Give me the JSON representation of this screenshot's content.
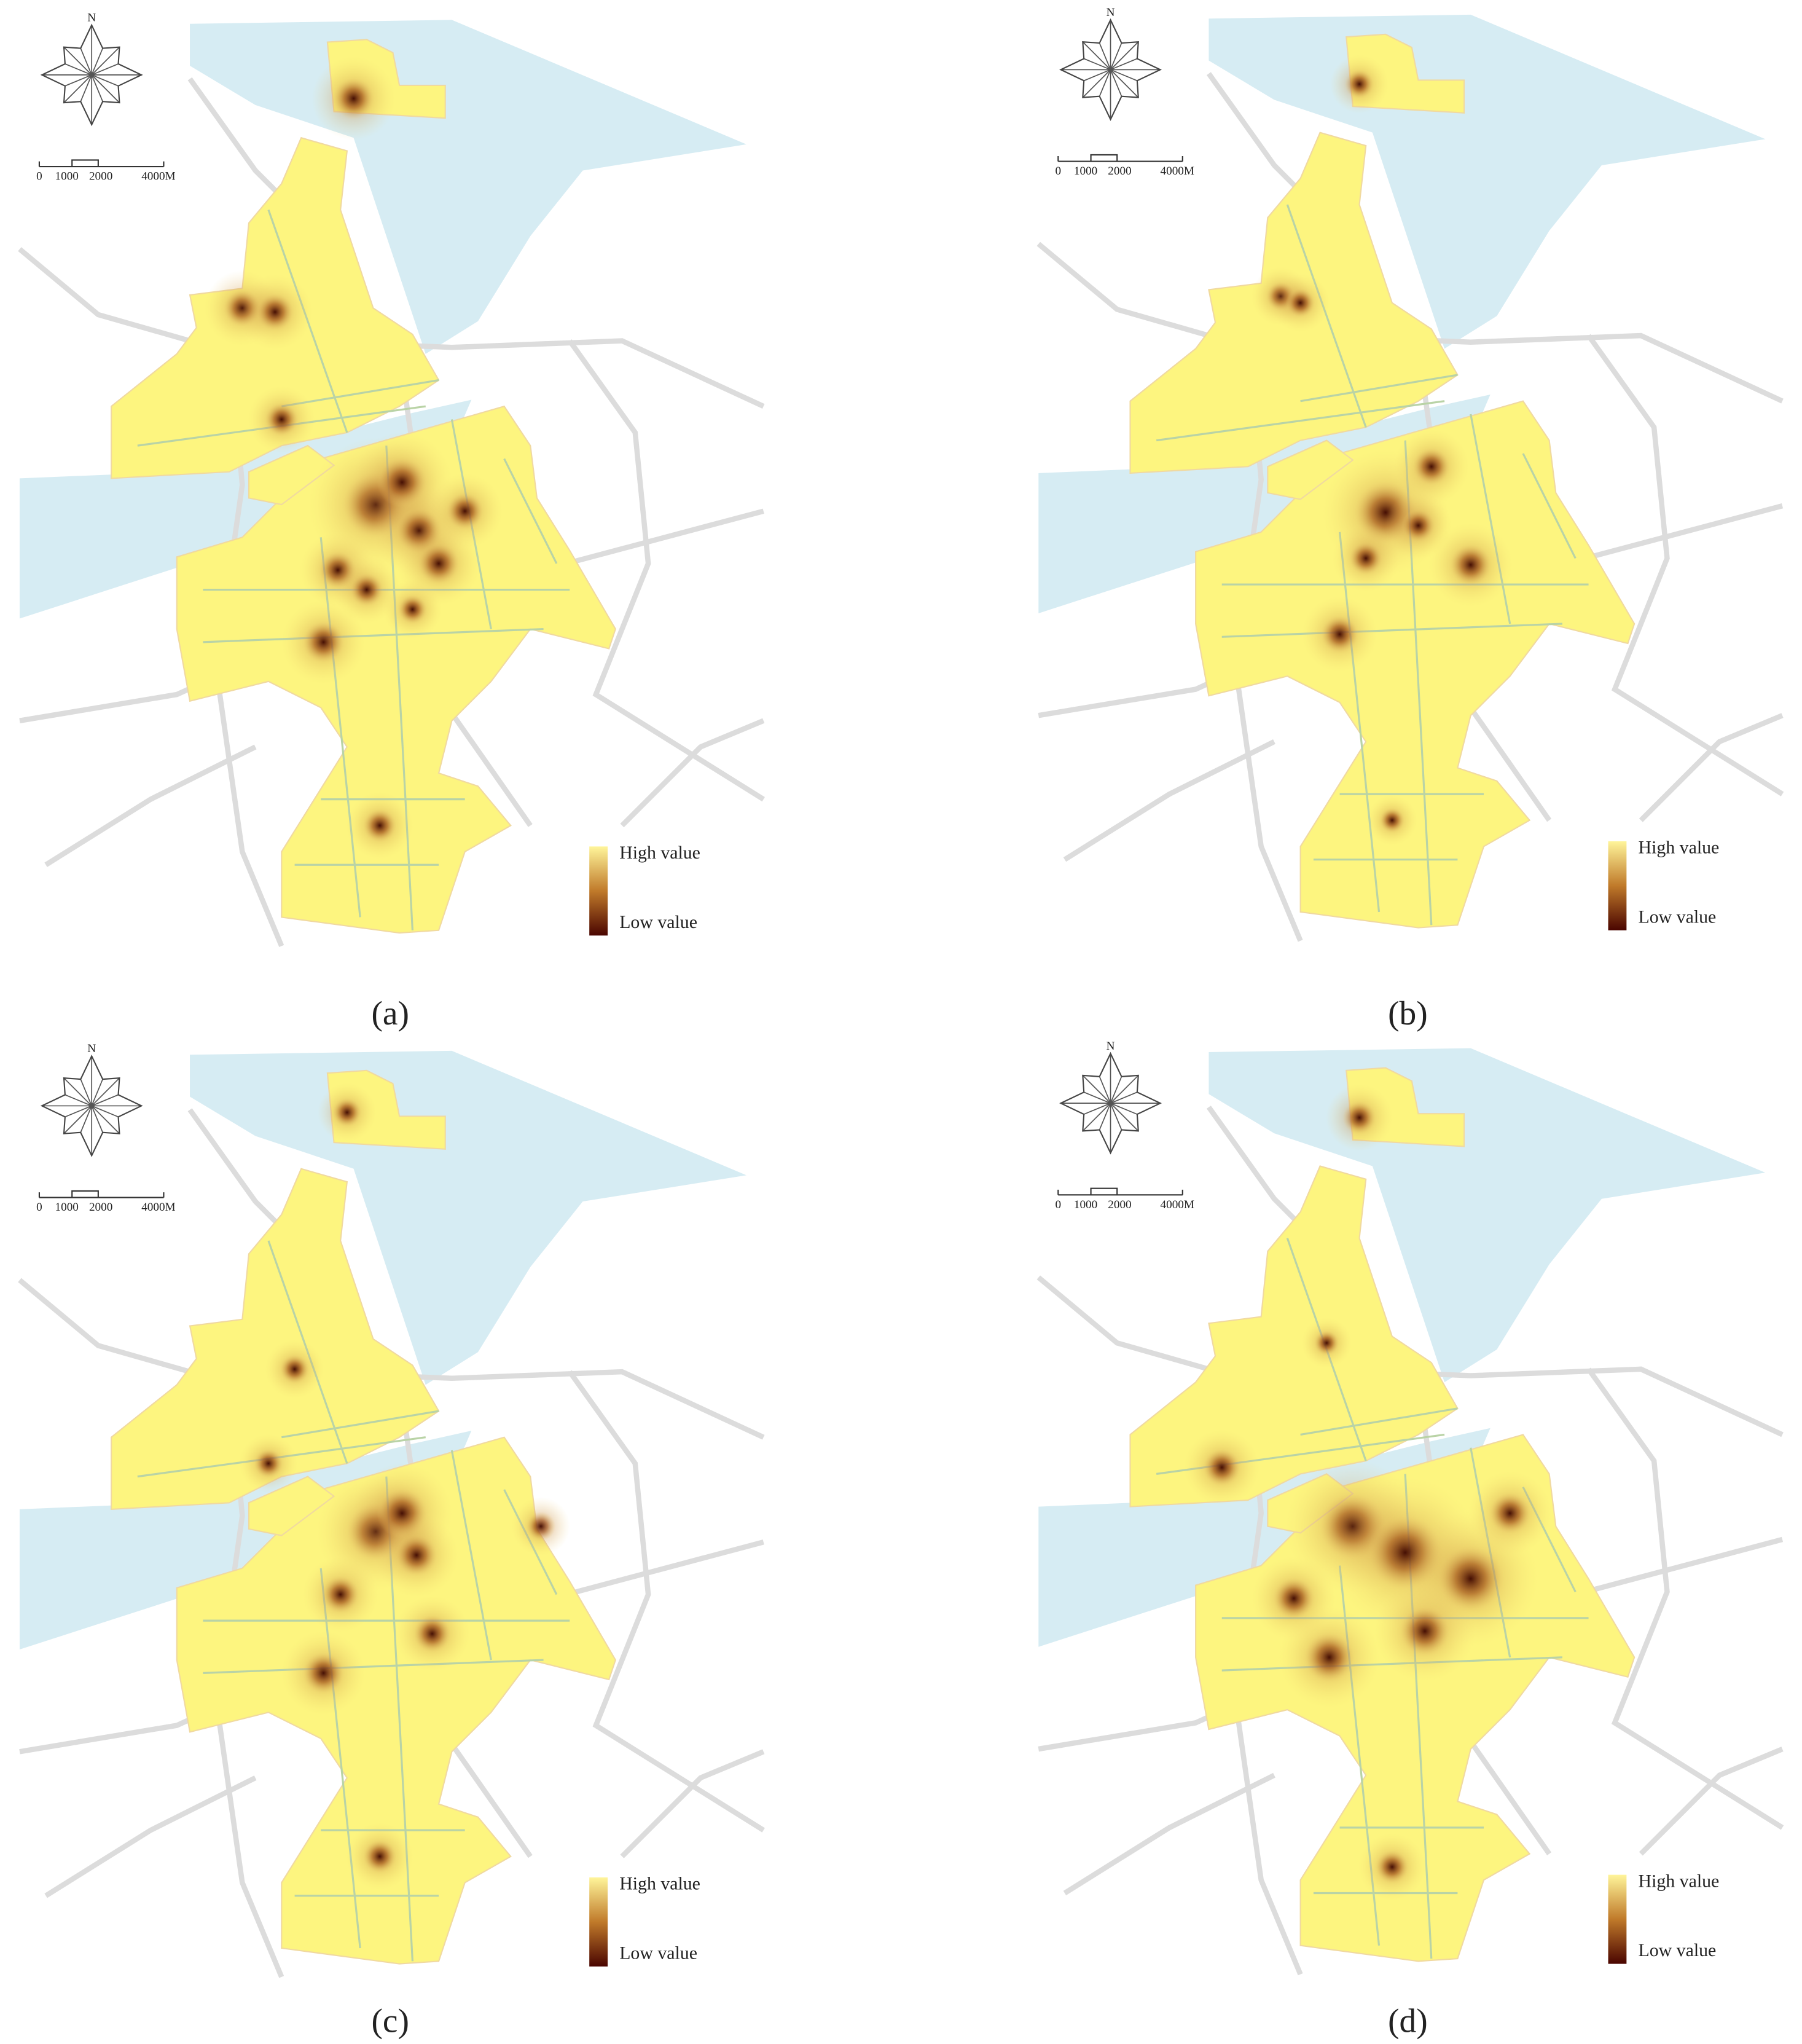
{
  "panels": [
    {
      "label": "(a)",
      "north": "N",
      "scale_labels": [
        "0",
        "1000",
        "2000",
        "4000M"
      ],
      "legend": {
        "high": "High value",
        "low": "Low value"
      }
    },
    {
      "label": "(b)",
      "north": "N",
      "scale_labels": [
        "0",
        "1000",
        "2000",
        "4000M"
      ],
      "legend": {
        "high": "High value",
        "low": "Low value"
      }
    },
    {
      "label": "(c)",
      "north": "N",
      "scale_labels": [
        "0",
        "1000",
        "2000",
        "4000M"
      ],
      "legend": {
        "high": "High value",
        "low": "Low value"
      }
    },
    {
      "label": "(d)",
      "north": "N",
      "scale_labels": [
        "0",
        "1000",
        "2000",
        "4000M"
      ],
      "legend": {
        "high": "High value",
        "low": "Low value"
      }
    }
  ]
}
